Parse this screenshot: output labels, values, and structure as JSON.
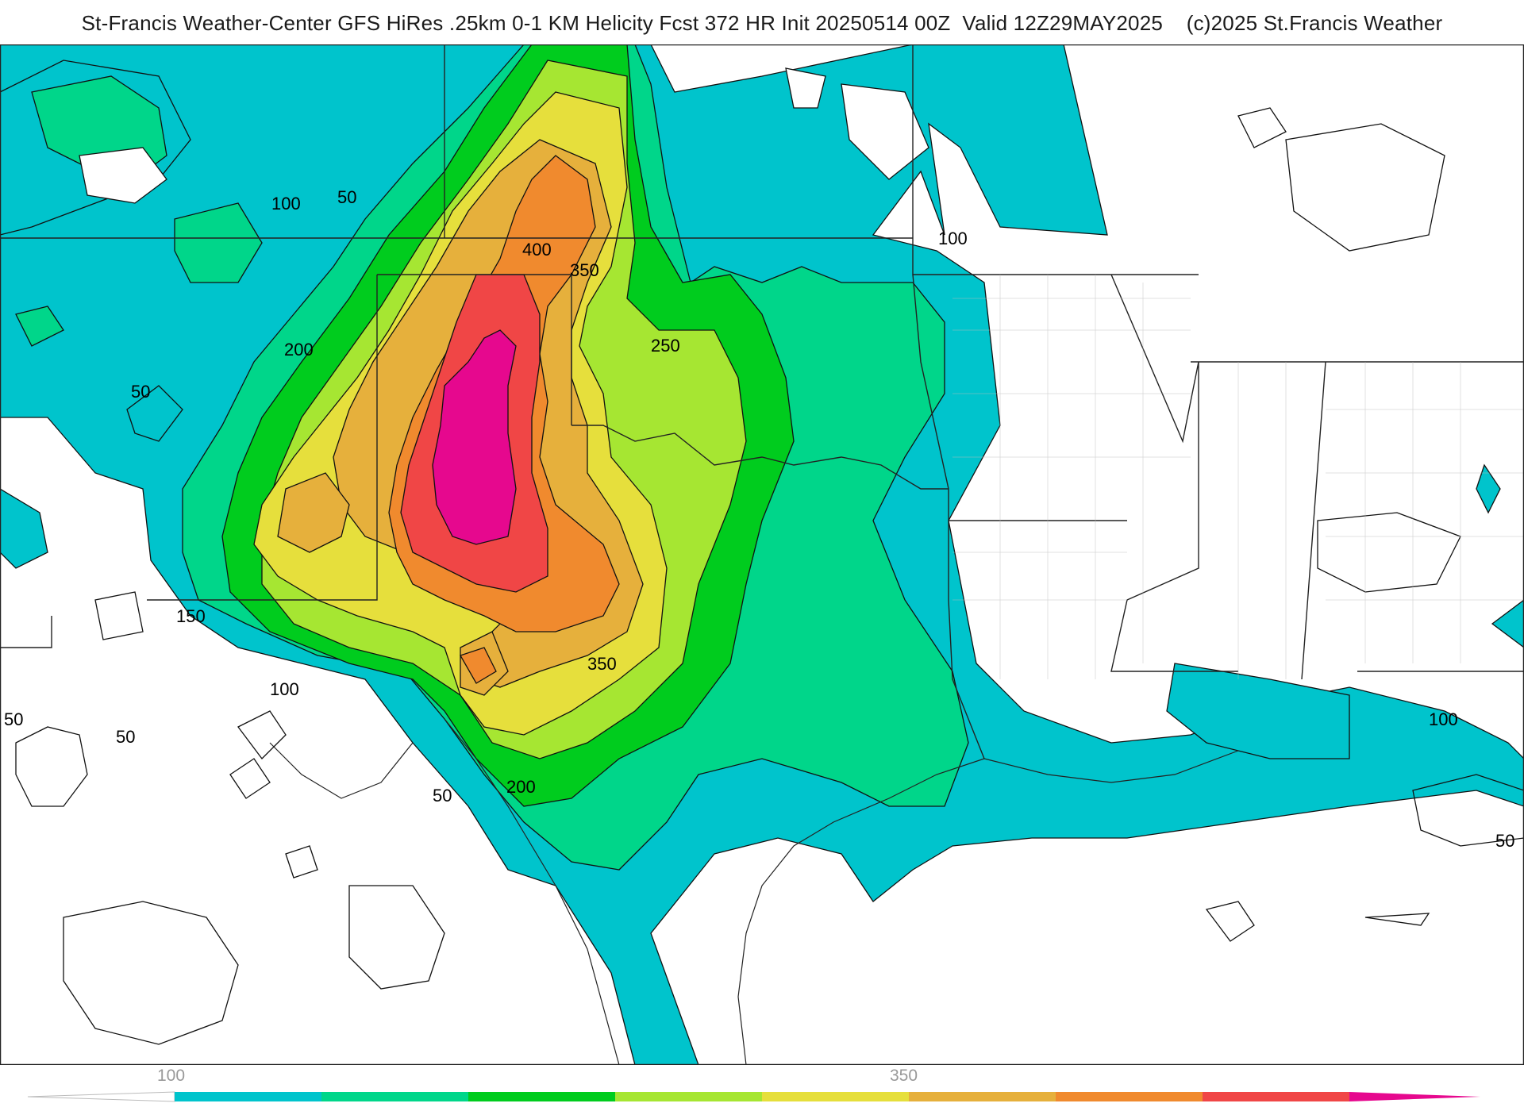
{
  "title": "St-Francis Weather-Center GFS HiRes .25km 0-1 KM Helicity Fcst 372 HR Init 20250514 00Z  Valid 12Z29MAY2025    (c)2025 St.Francis Weather",
  "map": {
    "contour_labels": [
      "100",
      "50",
      "100",
      "400",
      "350",
      "200",
      "250",
      "50",
      "150",
      "100",
      "50",
      "50",
      "350",
      "200",
      "50",
      "100",
      "50"
    ]
  },
  "legend": {
    "tick_labels": [
      "100",
      "350"
    ],
    "colors": [
      "#00c4cc",
      "#00d68a",
      "#00cc1e",
      "#a6e632",
      "#e6df3c",
      "#e6b03c",
      "#f08a2e",
      "#f04646",
      "#e6088e"
    ]
  }
}
